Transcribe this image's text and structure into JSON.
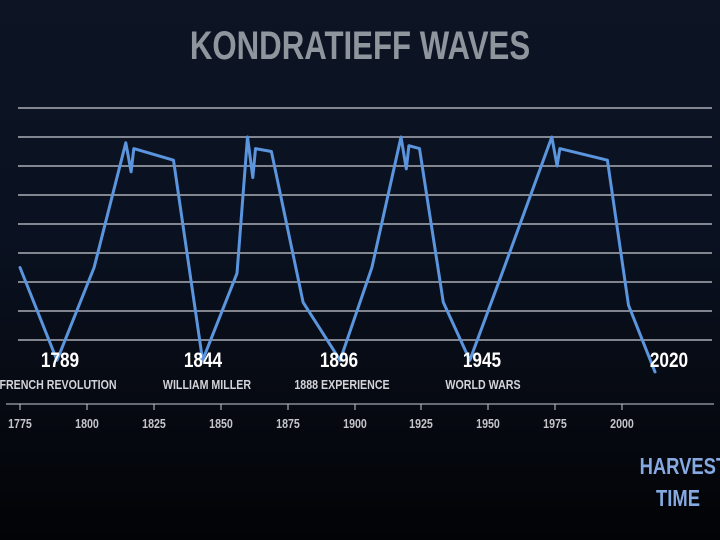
{
  "chart_data": {
    "type": "line",
    "title": "KONDRATIEFF WAVES",
    "xlim": [
      1775,
      2020
    ],
    "x_ticks": [
      1775,
      1800,
      1825,
      1850,
      1875,
      1900,
      1925,
      1950,
      1975,
      2000
    ],
    "gridlines": 9,
    "line_color": "#5b95de",
    "series": [
      {
        "x": [
          1775,
          1789,
          1803,
          1815,
          1817,
          1818,
          1833,
          1844,
          1857,
          1861,
          1863,
          1864,
          1870,
          1882,
          1896,
          1908,
          1919,
          1921,
          1922,
          1926,
          1935,
          1945,
          1958,
          1976,
          1978,
          1979,
          1997,
          2005,
          2015
        ],
        "y": [
          6.5,
          3.3,
          6.5,
          10.8,
          9.8,
          10.6,
          10.2,
          3.3,
          6.3,
          11.0,
          9.6,
          10.6,
          10.5,
          5.3,
          3.3,
          6.5,
          11.0,
          9.9,
          10.7,
          10.6,
          5.3,
          3.3,
          6.5,
          11.0,
          10.0,
          10.6,
          10.2,
          5.2,
          2.9
        ]
      }
    ],
    "markers": [
      {
        "year": "1789",
        "event": "FRENCH REVOLUTION"
      },
      {
        "year": "1844",
        "event": "WILLIAM MILLER"
      },
      {
        "year": "1896",
        "event": "1888 EXPERIENCE"
      },
      {
        "year": "1945",
        "event": "WORLD WARS"
      },
      {
        "year": "2020",
        "event": ""
      }
    ]
  },
  "harvest": {
    "line1": "HARVEST",
    "line2": "TIME"
  },
  "colors": {
    "title": "#8f959d",
    "grid": "#c9ccd2",
    "year_label": "#ffffff",
    "event_label": "#d2d4d8",
    "tick_label": "#c4c6ca",
    "harvest": "#86a9e2"
  }
}
